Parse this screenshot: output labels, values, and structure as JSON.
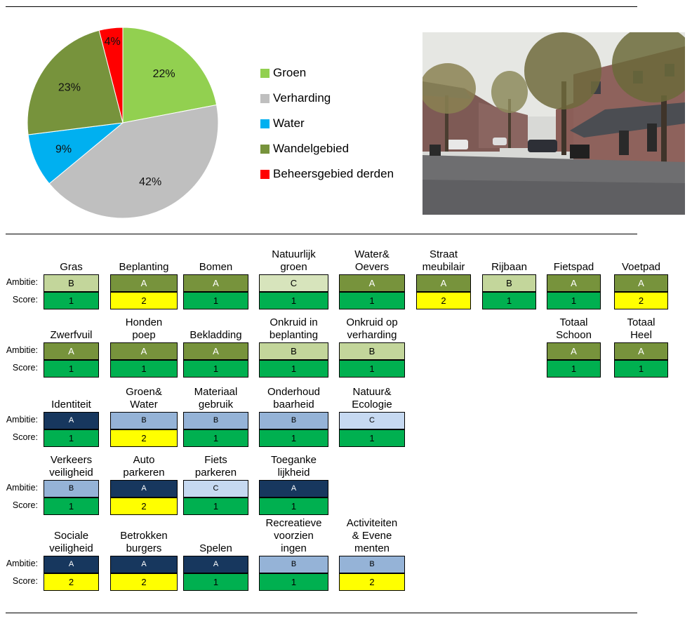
{
  "chart_data": {
    "type": "pie",
    "slices": [
      {
        "label": "Groen",
        "value": 22,
        "display": "22%",
        "color": "#92D050"
      },
      {
        "label": "Verharding",
        "value": 42,
        "display": "42%",
        "color": "#BFBFBF"
      },
      {
        "label": "Water",
        "value": 9,
        "display": "9%",
        "color": "#00B0F0"
      },
      {
        "label": "Wandelgebied",
        "value": 23,
        "display": "23%",
        "color": "#77933C"
      },
      {
        "label": "Beheersgebied derden",
        "value": 4,
        "display": "4%",
        "color": "#FF0000"
      }
    ]
  },
  "legend": {
    "items": [
      {
        "label": "Groen",
        "color": "#92D050"
      },
      {
        "label": "Verharding",
        "color": "#BFBFBF"
      },
      {
        "label": "Water",
        "color": "#00B0F0"
      },
      {
        "label": "Wandelgebied",
        "color": "#77933C"
      },
      {
        "label": "Beheersgebied derden",
        "color": "#FF0000"
      }
    ]
  },
  "photo": {
    "description_icon": "street-photo"
  },
  "labels": {
    "ambitie": "Ambitie:",
    "score": "Score:"
  },
  "colors": {
    "green_A": "#77933C",
    "green_B": "#C3D69B",
    "green_C": "#D7E4BC",
    "blue_A": "#17375E",
    "blue_B": "#95B3D7",
    "blue_C": "#C6D9F1",
    "score_1": "#00B050",
    "score_2": "#FFFF00"
  },
  "grid": {
    "rows": [
      {
        "theme": "green",
        "items": [
          {
            "label": "Gras",
            "ambitie": "B",
            "score": "1"
          },
          {
            "label": "Beplanting",
            "ambitie": "A",
            "score": "2"
          },
          {
            "label": "Bomen",
            "ambitie": "A",
            "score": "1"
          },
          {
            "label": "Natuurlijk\ngroen",
            "ambitie": "C",
            "score": "1"
          },
          {
            "label": "Water&\nOevers",
            "ambitie": "A",
            "score": "1"
          },
          {
            "label": "Straat\nmeubilair",
            "ambitie": "A",
            "score": "2"
          },
          {
            "label": "Rijbaan",
            "ambitie": "B",
            "score": "1"
          },
          {
            "label": "Fietspad",
            "ambitie": "A",
            "score": "1"
          },
          {
            "label": "Voetpad",
            "ambitie": "A",
            "score": "2"
          }
        ]
      },
      {
        "theme": "green",
        "items": [
          {
            "label": "Zwerfvuil",
            "ambitie": "A",
            "score": "1"
          },
          {
            "label": "Honden\npoep",
            "ambitie": "A",
            "score": "1"
          },
          {
            "label": "Bekladding",
            "ambitie": "A",
            "score": "1"
          },
          {
            "label": "Onkruid in\nbeplanting",
            "ambitie": "B",
            "score": "1"
          },
          {
            "label": "Onkruid op\nverharding",
            "ambitie": "B",
            "score": "1"
          },
          null,
          null,
          {
            "label": "Totaal\nSchoon",
            "ambitie": "A",
            "score": "1"
          },
          {
            "label": "Totaal\nHeel",
            "ambitie": "A",
            "score": "1"
          }
        ]
      },
      {
        "theme": "blue",
        "items": [
          {
            "label": "Identiteit",
            "ambitie": "A",
            "score": "1"
          },
          {
            "label": "Groen&\nWater",
            "ambitie": "B",
            "score": "2"
          },
          {
            "label": "Materiaal\ngebruik",
            "ambitie": "B",
            "score": "1"
          },
          {
            "label": "Onderhoud\nbaarheid",
            "ambitie": "B",
            "score": "1"
          },
          {
            "label": "Natuur&\nEcologie",
            "ambitie": "C",
            "score": "1"
          }
        ]
      },
      {
        "theme": "blue",
        "items": [
          {
            "label": "Verkeers\nveiligheid",
            "ambitie": "B",
            "score": "1"
          },
          {
            "label": "Auto\nparkeren",
            "ambitie": "A",
            "score": "2"
          },
          {
            "label": "Fiets\nparkeren",
            "ambitie": "C",
            "score": "1"
          },
          {
            "label": "Toeganke\nlijkheid",
            "ambitie": "A",
            "score": "1"
          }
        ]
      },
      {
        "theme": "blue",
        "items": [
          {
            "label": "Sociale\nveiligheid",
            "ambitie": "A",
            "score": "2"
          },
          {
            "label": "Betrokken\nburgers",
            "ambitie": "A",
            "score": "2"
          },
          {
            "label": "Spelen",
            "ambitie": "A",
            "score": "1"
          },
          {
            "label": "Recreatieve\nvoorzien\ningen",
            "ambitie": "B",
            "score": "1"
          },
          {
            "label": "Activiteiten\n& Evene\nmenten",
            "ambitie": "B",
            "score": "2"
          }
        ]
      }
    ]
  }
}
